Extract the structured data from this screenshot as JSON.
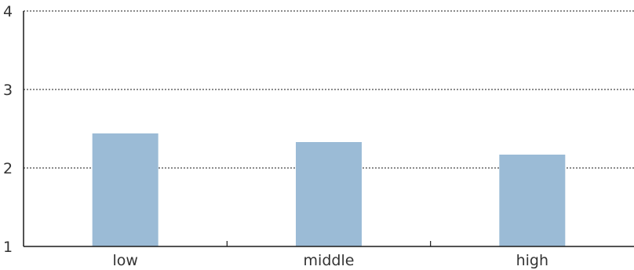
{
  "chart_data": {
    "type": "bar",
    "title": "",
    "xlabel": "",
    "ylabel": "",
    "categories": [
      "low",
      "middle",
      "high"
    ],
    "values": [
      2.44,
      2.33,
      2.17
    ],
    "ylim": [
      1,
      4
    ],
    "yticks": [
      1,
      2,
      3,
      4
    ],
    "grid": true,
    "grid_style": "dotted",
    "legend": "none",
    "colors": {
      "bar": "#9bbbd6",
      "grid": "#1a1a1a",
      "axis": "#1a1a1a",
      "text": "#333333"
    }
  }
}
